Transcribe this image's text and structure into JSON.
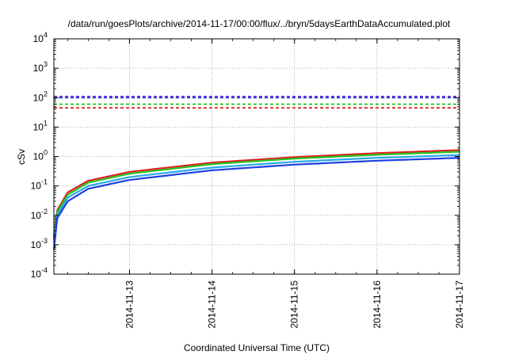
{
  "chart_data": {
    "type": "line",
    "title": "/data/run/goesPlots/archive/2014-11-17/00:00/flux/../bryn/5daysEarthDataAccumulated.plot",
    "xlabel": "Coordinated Universal Time (UTC)",
    "ylabel": "cSv",
    "yscale": "log",
    "ylim": [
      0.0001,
      10000
    ],
    "xlim": [
      "2014-11-12T02:00",
      "2014-11-17T00:00"
    ],
    "x_ticks": [
      "2014-11-13",
      "2014-11-14",
      "2014-11-15",
      "2014-11-16",
      "2014-11-17"
    ],
    "y_ticks": [
      {
        "base": "10",
        "exp": "-4"
      },
      {
        "base": "10",
        "exp": "-3"
      },
      {
        "base": "10",
        "exp": "-2"
      },
      {
        "base": "10",
        "exp": "-1"
      },
      {
        "base": "10",
        "exp": "0"
      },
      {
        "base": "10",
        "exp": "1"
      },
      {
        "base": "10",
        "exp": "2"
      },
      {
        "base": "10",
        "exp": "3"
      },
      {
        "base": "10",
        "exp": "4"
      }
    ],
    "grid": true,
    "legend": "none",
    "thresholds": [
      {
        "y": 110,
        "color": "#7b2fd6",
        "style": "dashed"
      },
      {
        "y": 100,
        "color": "#1f3fe0",
        "style": "dashed"
      },
      {
        "y": 60,
        "color": "#22c422",
        "style": "dashed"
      },
      {
        "y": 45,
        "color": "#e02020",
        "style": "dashed"
      }
    ],
    "series": [
      {
        "color": "#e02020",
        "x": [
          "2014-11-12T02:00",
          "2014-11-12T03:00",
          "2014-11-12T06:00",
          "2014-11-12T12:00",
          "2014-11-13T00:00",
          "2014-11-14T00:00",
          "2014-11-15T00:00",
          "2014-11-16T00:00",
          "2014-11-17T00:00"
        ],
        "y": [
          0.002,
          0.015,
          0.06,
          0.15,
          0.3,
          0.62,
          0.95,
          1.3,
          1.65
        ]
      },
      {
        "color": "#22c422",
        "x": [
          "2014-11-12T02:00",
          "2014-11-12T03:00",
          "2014-11-12T06:00",
          "2014-11-12T12:00",
          "2014-11-13T00:00",
          "2014-11-14T00:00",
          "2014-11-15T00:00",
          "2014-11-16T00:00",
          "2014-11-17T00:00"
        ],
        "y": [
          0.0018,
          0.013,
          0.05,
          0.13,
          0.26,
          0.55,
          0.85,
          1.15,
          1.45
        ]
      },
      {
        "color": "#2aa8e8",
        "x": [
          "2014-11-12T02:00",
          "2014-11-12T03:00",
          "2014-11-12T06:00",
          "2014-11-12T12:00",
          "2014-11-13T00:00",
          "2014-11-14T00:00",
          "2014-11-15T00:00",
          "2014-11-16T00:00",
          "2014-11-17T00:00"
        ],
        "y": [
          0.0015,
          0.01,
          0.04,
          0.1,
          0.2,
          0.42,
          0.66,
          0.9,
          1.12
        ]
      },
      {
        "color": "#1f3fe0",
        "x": [
          "2014-11-12T02:00",
          "2014-11-12T03:00",
          "2014-11-12T06:00",
          "2014-11-12T12:00",
          "2014-11-13T00:00",
          "2014-11-14T00:00",
          "2014-11-15T00:00",
          "2014-11-16T00:00",
          "2014-11-17T00:00"
        ],
        "y": [
          0.0007,
          0.008,
          0.03,
          0.08,
          0.16,
          0.34,
          0.53,
          0.72,
          0.9
        ]
      }
    ]
  }
}
